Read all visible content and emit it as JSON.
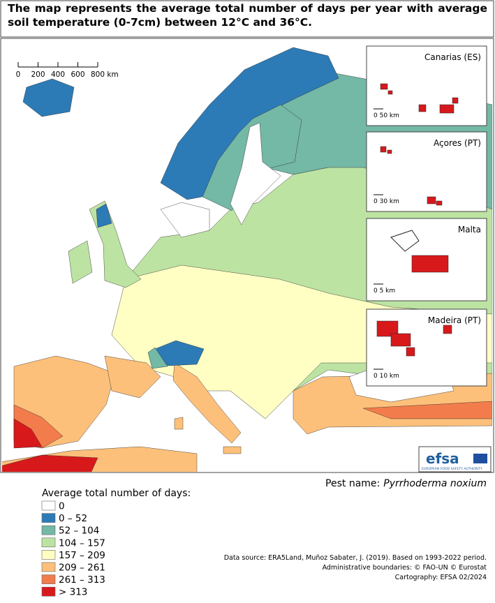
{
  "title": "The map represents the average total number of days per year with average soil temperature (0-7cm) between 12°C and 36°C.",
  "scale_bar": {
    "ticks": [
      "0",
      "200",
      "400",
      "600",
      "800 km"
    ]
  },
  "insets": [
    {
      "name": "Canarias (ES)",
      "scale": "0 50 km"
    },
    {
      "name": "Açores (PT)",
      "scale": "0 30 km"
    },
    {
      "name": "Malta",
      "scale": "0 5 km"
    },
    {
      "name": "Madeira (PT)",
      "scale": "0 10 km"
    }
  ],
  "logo": {
    "name": "efsa",
    "subtitle": "EUROPEAN FOOD SAFETY AUTHORITY"
  },
  "pest": {
    "label": "Pest name:",
    "name": "Pyrrhoderma noxium"
  },
  "legend": {
    "title": "Average total number of days:",
    "items": [
      {
        "label": "0",
        "color": "#ffffff"
      },
      {
        "label": "0 – 52",
        "color": "#2c7bb6"
      },
      {
        "label": "52 – 104",
        "color": "#74b8a6"
      },
      {
        "label": "104 – 157",
        "color": "#bde3a3"
      },
      {
        "label": "157 – 209",
        "color": "#ffffc4"
      },
      {
        "label": "209 – 261",
        "color": "#fdc07a"
      },
      {
        "label": "261 – 313",
        "color": "#f27c4c"
      },
      {
        "label": "> 313",
        "color": "#d7191c"
      }
    ]
  },
  "sources": [
    "Data source: ERA5Land, Muñoz Sabater, J. (2019). Based on 1993-2022 period.",
    "Administrative boundaries: © FAO-UN © Eurostat",
    "Cartography: EFSA 02/2024"
  ]
}
